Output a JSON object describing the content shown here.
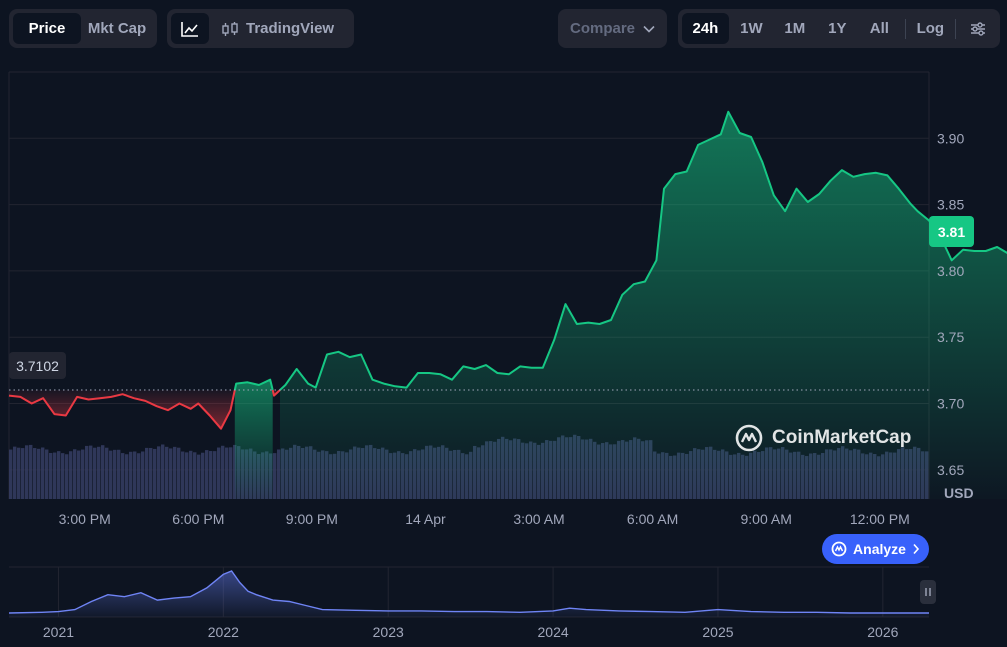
{
  "toolbar": {
    "chart_type_tabs": [
      "Price",
      "Mkt Cap"
    ],
    "tradingview_label": "TradingView",
    "compare_label": "Compare",
    "ranges": [
      "24h",
      "1W",
      "1M",
      "1Y",
      "All"
    ],
    "log_label": "Log"
  },
  "watermark": "CoinMarketCap",
  "analyze_label": "Analyze",
  "open_price_label": "3.7102",
  "current_price_label": "3.81",
  "chart_data": [
    {
      "type": "area",
      "currency_label": "USD",
      "y_ticks": [
        "3.65",
        "3.70",
        "3.75",
        "3.80",
        "3.85",
        "3.90"
      ],
      "x_ticks": [
        "3:00 PM",
        "6:00 PM",
        "9:00 PM",
        "14 Apr",
        "3:00 AM",
        "6:00 AM",
        "9:00 AM",
        "12:00 PM"
      ],
      "x_tick_hours": [
        2,
        5,
        8,
        11,
        14,
        17,
        20,
        23
      ],
      "xlim_hours": [
        0,
        24.3
      ],
      "ylim": [
        3.628,
        3.95
      ],
      "baseline": 3.7102,
      "colors": {
        "up": "#16c784",
        "down": "#ea3943"
      },
      "price": [
        [
          0,
          3.706
        ],
        [
          0.3,
          3.705
        ],
        [
          0.6,
          3.7
        ],
        [
          0.9,
          3.704
        ],
        [
          1.2,
          3.692
        ],
        [
          1.5,
          3.691
        ],
        [
          1.8,
          3.705
        ],
        [
          2.1,
          3.703
        ],
        [
          2.4,
          3.704
        ],
        [
          2.7,
          3.705
        ],
        [
          3.0,
          3.707
        ],
        [
          3.3,
          3.704
        ],
        [
          3.6,
          3.702
        ],
        [
          3.9,
          3.698
        ],
        [
          4.2,
          3.695
        ],
        [
          4.5,
          3.7
        ],
        [
          4.8,
          3.696
        ],
        [
          5.0,
          3.7
        ],
        [
          5.3,
          3.691
        ],
        [
          5.6,
          3.681
        ],
        [
          5.85,
          3.695
        ],
        [
          6.0,
          3.715
        ],
        [
          6.3,
          3.716
        ],
        [
          6.6,
          3.714
        ],
        [
          6.9,
          3.718
        ],
        [
          7.0,
          3.706
        ],
        [
          7.3,
          3.714
        ],
        [
          7.6,
          3.726
        ],
        [
          7.9,
          3.715
        ],
        [
          8.1,
          3.712
        ],
        [
          8.4,
          3.737
        ],
        [
          8.7,
          3.739
        ],
        [
          9.0,
          3.735
        ],
        [
          9.3,
          3.737
        ],
        [
          9.6,
          3.718
        ],
        [
          9.9,
          3.715
        ],
        [
          10.2,
          3.713
        ],
        [
          10.5,
          3.712
        ],
        [
          10.8,
          3.723
        ],
        [
          11.1,
          3.723
        ],
        [
          11.4,
          3.722
        ],
        [
          11.7,
          3.718
        ],
        [
          12.0,
          3.728
        ],
        [
          12.3,
          3.726
        ],
        [
          12.6,
          3.729
        ],
        [
          12.9,
          3.723
        ],
        [
          13.2,
          3.722
        ],
        [
          13.5,
          3.728
        ],
        [
          13.8,
          3.727
        ],
        [
          14.1,
          3.727
        ],
        [
          14.4,
          3.748
        ],
        [
          14.7,
          3.775
        ],
        [
          15.0,
          3.76
        ],
        [
          15.3,
          3.761
        ],
        [
          15.6,
          3.76
        ],
        [
          15.9,
          3.763
        ],
        [
          16.2,
          3.782
        ],
        [
          16.5,
          3.79
        ],
        [
          16.8,
          3.792
        ],
        [
          17.1,
          3.808
        ],
        [
          17.3,
          3.862
        ],
        [
          17.6,
          3.873
        ],
        [
          17.9,
          3.875
        ],
        [
          18.2,
          3.895
        ],
        [
          18.5,
          3.899
        ],
        [
          18.8,
          3.903
        ],
        [
          19.0,
          3.92
        ],
        [
          19.3,
          3.904
        ],
        [
          19.6,
          3.901
        ],
        [
          19.9,
          3.882
        ],
        [
          20.2,
          3.857
        ],
        [
          20.5,
          3.845
        ],
        [
          20.8,
          3.862
        ],
        [
          21.1,
          3.852
        ],
        [
          21.4,
          3.858
        ],
        [
          21.7,
          3.868
        ],
        [
          22.0,
          3.876
        ],
        [
          22.3,
          3.871
        ],
        [
          22.6,
          3.873
        ],
        [
          22.9,
          3.874
        ],
        [
          23.2,
          3.872
        ],
        [
          23.5,
          3.862
        ],
        [
          23.8,
          3.851
        ],
        [
          24.0,
          3.845
        ],
        [
          24.3,
          3.838
        ],
        [
          24.6,
          3.826
        ],
        [
          24.9,
          3.808
        ],
        [
          25.2,
          3.816
        ],
        [
          25.5,
          3.815
        ],
        [
          25.8,
          3.815
        ],
        [
          26.1,
          3.818
        ],
        [
          26.4,
          3.813
        ]
      ],
      "volume": {
        "min": 0,
        "max": 100,
        "values": []
      }
    },
    {
      "type": "area",
      "x_ticks": [
        "2021",
        "2022",
        "2023",
        "2024",
        "2025",
        "2026"
      ],
      "x_tick_years": [
        2021,
        2022,
        2023,
        2024,
        2025,
        2026
      ],
      "xlim_years": [
        2020.7,
        2026.28
      ],
      "price": [
        [
          2020.7,
          3
        ],
        [
          2020.9,
          4
        ],
        [
          2021.0,
          5
        ],
        [
          2021.1,
          8
        ],
        [
          2021.2,
          20
        ],
        [
          2021.3,
          30
        ],
        [
          2021.4,
          27
        ],
        [
          2021.5,
          33
        ],
        [
          2021.6,
          22
        ],
        [
          2021.7,
          25
        ],
        [
          2021.8,
          27
        ],
        [
          2021.9,
          40
        ],
        [
          2022.0,
          60
        ],
        [
          2022.05,
          65
        ],
        [
          2022.1,
          48
        ],
        [
          2022.15,
          35
        ],
        [
          2022.2,
          30
        ],
        [
          2022.3,
          22
        ],
        [
          2022.4,
          20
        ],
        [
          2022.5,
          14
        ],
        [
          2022.6,
          8
        ],
        [
          2022.8,
          7
        ],
        [
          2023.0,
          6
        ],
        [
          2023.2,
          6
        ],
        [
          2023.4,
          5
        ],
        [
          2023.6,
          5
        ],
        [
          2023.8,
          4
        ],
        [
          2024.0,
          6
        ],
        [
          2024.1,
          10
        ],
        [
          2024.2,
          8
        ],
        [
          2024.4,
          6
        ],
        [
          2024.6,
          5
        ],
        [
          2024.8,
          4
        ],
        [
          2025.0,
          8
        ],
        [
          2025.2,
          5
        ],
        [
          2025.4,
          4
        ],
        [
          2025.6,
          4
        ],
        [
          2025.8,
          3
        ],
        [
          2026.0,
          3
        ],
        [
          2026.28,
          3
        ]
      ]
    }
  ]
}
